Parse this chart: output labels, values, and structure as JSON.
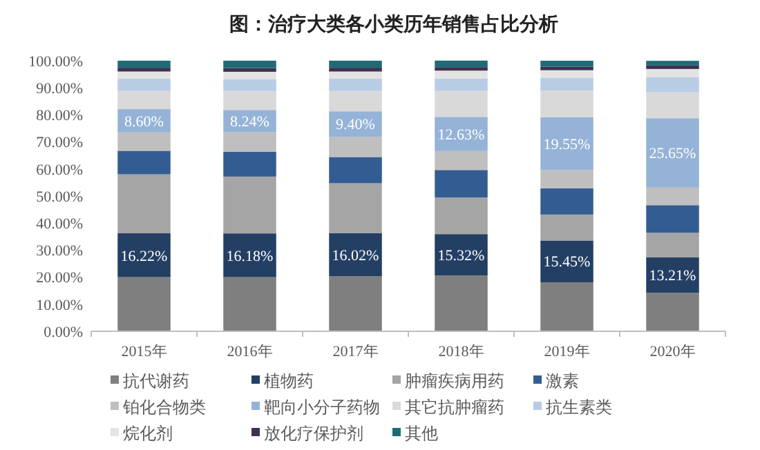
{
  "chart_data": {
    "type": "bar",
    "stacked": true,
    "title": "图：治疗大类各小类历年销售占比分析",
    "categories": [
      "2015年",
      "2016年",
      "2017年",
      "2018年",
      "2019年",
      "2020年"
    ],
    "ylim": [
      0,
      100
    ],
    "yticks": [
      {
        "value": 0,
        "label": "0.00%"
      },
      {
        "value": 10,
        "label": "10.00%"
      },
      {
        "value": 20,
        "label": "20.00%"
      },
      {
        "value": 30,
        "label": "30.00%"
      },
      {
        "value": 40,
        "label": "40.00%"
      },
      {
        "value": 50,
        "label": "50.00%"
      },
      {
        "value": 60,
        "label": "60.00%"
      },
      {
        "value": 70,
        "label": "70.00%"
      },
      {
        "value": 80,
        "label": "80.00%"
      },
      {
        "value": 90,
        "label": "90.00%"
      },
      {
        "value": 100,
        "label": "100.00%"
      }
    ],
    "legend": "bottom",
    "series": [
      {
        "name": "抗代谢药",
        "color": "#7f7f7f",
        "values": [
          20.0,
          20.0,
          20.3,
          20.6,
          18.1,
          14.2
        ]
      },
      {
        "name": "植物药",
        "color": "#243f64",
        "values": [
          16.22,
          16.18,
          16.02,
          15.32,
          15.45,
          13.21
        ],
        "value_labels": [
          "16.22%",
          "16.18%",
          "16.02%",
          "15.32%",
          "15.45%",
          "13.21%"
        ]
      },
      {
        "name": "肿瘤疾病用药",
        "color": "#a5a5a5",
        "values": [
          21.8,
          21.0,
          18.4,
          13.5,
          9.6,
          9.0
        ]
      },
      {
        "name": "激素",
        "color": "#335d92",
        "values": [
          8.7,
          9.2,
          9.7,
          10.2,
          9.7,
          10.2
        ]
      },
      {
        "name": "铂化合物类",
        "color": "#bfbfbf",
        "values": [
          6.8,
          7.2,
          7.5,
          7.0,
          6.7,
          6.5
        ]
      },
      {
        "name": "靶向小分子药物",
        "color": "#95b3d7",
        "values": [
          8.6,
          8.24,
          9.4,
          12.63,
          19.55,
          25.65
        ],
        "value_labels": [
          "8.60%",
          "8.24%",
          "9.40%",
          "12.63%",
          "19.55%",
          "25.65%"
        ]
      },
      {
        "name": "其它抗肿瘤药",
        "color": "#d9d9d9",
        "values": [
          6.7,
          7.0,
          7.5,
          9.6,
          9.9,
          9.6
        ]
      },
      {
        "name": "抗生素类",
        "color": "#b8cce4",
        "values": [
          4.6,
          4.4,
          4.6,
          4.6,
          4.6,
          5.5
        ]
      },
      {
        "name": "烷化剂",
        "color": "#e3e3e3",
        "values": [
          2.6,
          2.7,
          2.6,
          2.9,
          2.9,
          3.1
        ]
      },
      {
        "name": "放化疗保护剂",
        "color": "#403152",
        "values": [
          1.4,
          1.4,
          1.4,
          1.3,
          1.3,
          1.3
        ]
      },
      {
        "name": "其他",
        "color": "#1f6b75",
        "values": [
          2.6,
          2.7,
          2.6,
          2.4,
          2.2,
          1.7
        ]
      }
    ]
  }
}
